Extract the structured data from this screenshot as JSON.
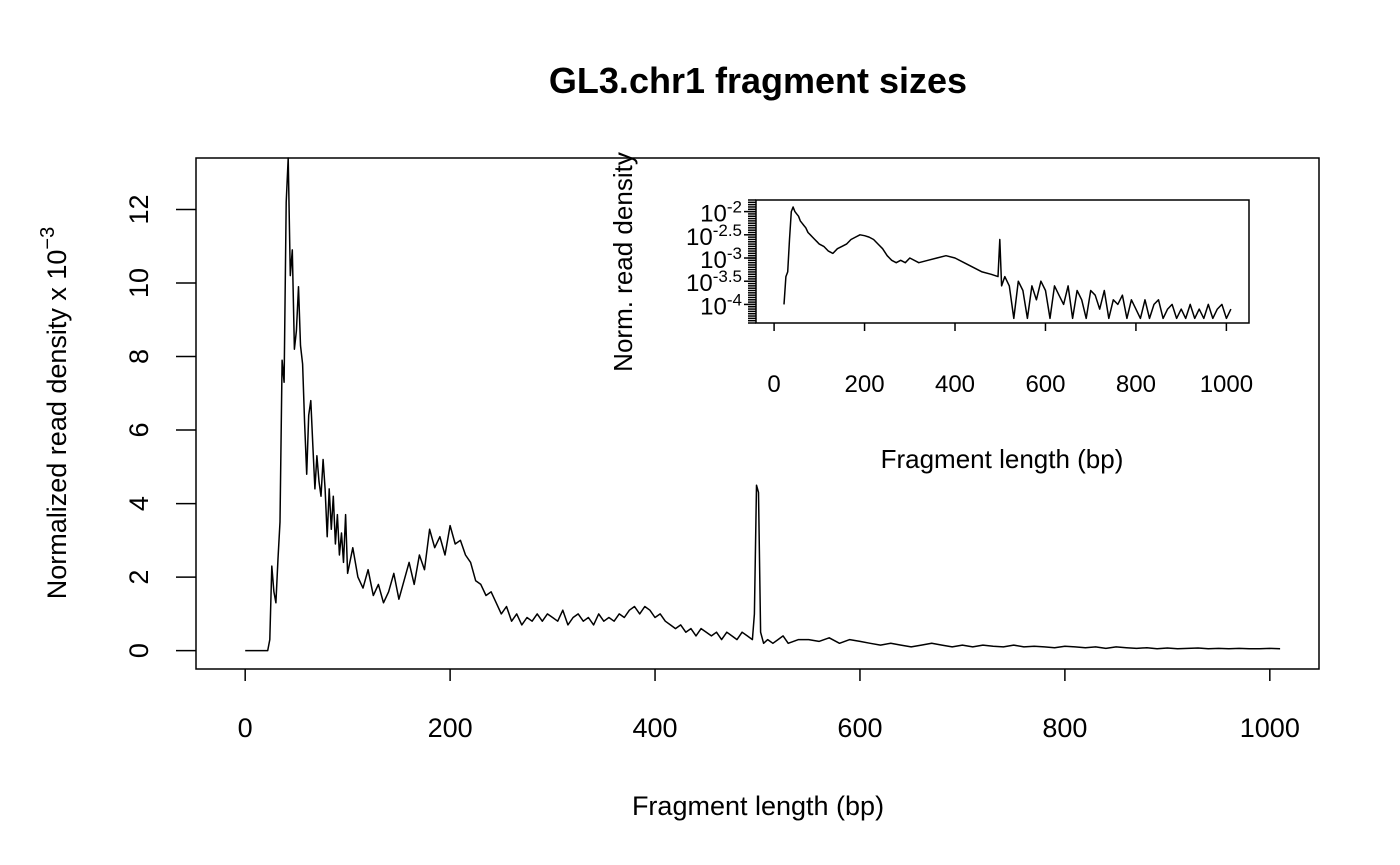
{
  "chart_data": [
    {
      "type": "line",
      "title": "GL3.chr1 fragment sizes",
      "xlabel": "Fragment length (bp)",
      "ylabel_main": "Normalized read density x 10",
      "ylabel_exp": "−3",
      "xlim": [
        -48,
        1048
      ],
      "ylim": [
        -0.5,
        13.4
      ],
      "xticks": [
        0,
        200,
        400,
        600,
        800,
        1000
      ],
      "yticks": [
        0,
        2,
        4,
        6,
        8,
        10,
        12
      ],
      "grid": false,
      "legend": "none",
      "series": [
        {
          "x": [
            0,
            22,
            24,
            26,
            28,
            30,
            32,
            34,
            36,
            38,
            40,
            42,
            44,
            46,
            48,
            50,
            52,
            54,
            56,
            58,
            60,
            62,
            64,
            66,
            68,
            70,
            72,
            74,
            76,
            78,
            80,
            82,
            84,
            86,
            88,
            90,
            92,
            94,
            96,
            98,
            100,
            105,
            110,
            115,
            120,
            125,
            130,
            135,
            140,
            145,
            150,
            155,
            160,
            165,
            170,
            175,
            180,
            185,
            190,
            195,
            200,
            205,
            210,
            215,
            220,
            225,
            230,
            235,
            240,
            245,
            250,
            255,
            260,
            265,
            270,
            275,
            280,
            285,
            290,
            295,
            300,
            305,
            310,
            315,
            320,
            325,
            330,
            335,
            340,
            345,
            350,
            355,
            360,
            365,
            370,
            375,
            380,
            385,
            390,
            395,
            400,
            405,
            410,
            415,
            420,
            425,
            430,
            435,
            440,
            445,
            450,
            455,
            460,
            465,
            470,
            475,
            480,
            485,
            490,
            495,
            497,
            499,
            501,
            503,
            506,
            510,
            515,
            520,
            525,
            530,
            540,
            550,
            560,
            570,
            580,
            590,
            600,
            610,
            620,
            630,
            640,
            650,
            660,
            670,
            680,
            690,
            700,
            710,
            720,
            730,
            740,
            750,
            760,
            770,
            780,
            790,
            800,
            810,
            820,
            830,
            840,
            850,
            860,
            870,
            880,
            890,
            900,
            910,
            920,
            930,
            940,
            950,
            960,
            970,
            980,
            990,
            1000,
            1010
          ],
          "y": [
            0,
            0,
            0.3,
            2.3,
            1.6,
            1.3,
            2.5,
            3.5,
            7.9,
            7.3,
            12.2,
            13.4,
            10.2,
            10.9,
            8.2,
            8.7,
            9.9,
            8.3,
            7.8,
            6.2,
            4.8,
            6.4,
            6.8,
            5.6,
            4.4,
            5.3,
            4.6,
            4.2,
            5.2,
            4.4,
            3.1,
            4.4,
            3.3,
            4.2,
            2.9,
            3.7,
            2.6,
            3.2,
            2.4,
            3.7,
            2.1,
            2.8,
            2.0,
            1.7,
            2.2,
            1.5,
            1.8,
            1.3,
            1.6,
            2.1,
            1.4,
            1.9,
            2.4,
            1.8,
            2.6,
            2.2,
            3.3,
            2.8,
            3.1,
            2.6,
            3.4,
            2.9,
            3.0,
            2.6,
            2.4,
            1.9,
            1.8,
            1.5,
            1.6,
            1.3,
            1.0,
            1.2,
            0.8,
            1.0,
            0.7,
            0.9,
            0.8,
            1.0,
            0.8,
            1.0,
            0.9,
            0.8,
            1.1,
            0.7,
            0.9,
            1.0,
            0.8,
            0.9,
            0.7,
            1.0,
            0.8,
            0.9,
            0.8,
            1.0,
            0.9,
            1.1,
            1.2,
            1.0,
            1.2,
            1.1,
            0.9,
            1.0,
            0.8,
            0.7,
            0.6,
            0.7,
            0.5,
            0.6,
            0.4,
            0.6,
            0.5,
            0.4,
            0.5,
            0.3,
            0.5,
            0.4,
            0.3,
            0.5,
            0.4,
            0.3,
            1.0,
            4.5,
            4.3,
            0.5,
            0.2,
            0.3,
            0.2,
            0.3,
            0.4,
            0.2,
            0.3,
            0.3,
            0.25,
            0.35,
            0.2,
            0.3,
            0.25,
            0.2,
            0.15,
            0.2,
            0.15,
            0.1,
            0.15,
            0.2,
            0.15,
            0.1,
            0.15,
            0.1,
            0.15,
            0.12,
            0.1,
            0.15,
            0.1,
            0.12,
            0.1,
            0.08,
            0.12,
            0.1,
            0.08,
            0.1,
            0.06,
            0.1,
            0.08,
            0.06,
            0.08,
            0.05,
            0.07,
            0.05,
            0.06,
            0.07,
            0.05,
            0.06,
            0.05,
            0.06,
            0.05,
            0.05,
            0.06,
            0.05
          ]
        }
      ]
    },
    {
      "type": "line",
      "title": "",
      "xlabel": "Fragment length (bp)",
      "ylabel": "Norm. read density",
      "yscale": "log10",
      "xlim": [
        -40,
        1050
      ],
      "ylim_log10": [
        -4.4,
        -1.75
      ],
      "xticks": [
        0,
        200,
        400,
        600,
        800,
        1000
      ],
      "yticks": [
        {
          "exp": -2,
          "label_base": "10",
          "label_exp": "-2"
        },
        {
          "exp": -2.5,
          "label_base": "10",
          "label_exp": "-2.5"
        },
        {
          "exp": -3,
          "label_base": "10",
          "label_exp": "-3"
        },
        {
          "exp": -3.5,
          "label_base": "10",
          "label_exp": "-3.5"
        },
        {
          "exp": -4,
          "label_base": "10",
          "label_exp": "-4"
        }
      ],
      "grid": false,
      "legend": "none",
      "series": [
        {
          "x": [
            22,
            26,
            30,
            34,
            38,
            42,
            46,
            50,
            54,
            58,
            62,
            66,
            70,
            75,
            80,
            85,
            90,
            95,
            100,
            110,
            120,
            130,
            140,
            150,
            160,
            170,
            180,
            190,
            200,
            210,
            220,
            230,
            240,
            250,
            260,
            270,
            280,
            290,
            300,
            320,
            340,
            360,
            380,
            400,
            420,
            440,
            460,
            480,
            495,
            499,
            503,
            510,
            520,
            530,
            540,
            550,
            560,
            570,
            580,
            590,
            600,
            610,
            620,
            630,
            640,
            650,
            660,
            670,
            680,
            690,
            700,
            710,
            720,
            730,
            740,
            750,
            760,
            770,
            780,
            790,
            800,
            810,
            820,
            830,
            840,
            850,
            860,
            870,
            880,
            890,
            900,
            910,
            920,
            930,
            940,
            950,
            960,
            970,
            980,
            990,
            1000,
            1010
          ],
          "y_log10": [
            -4.0,
            -3.4,
            -3.3,
            -2.6,
            -2.0,
            -1.9,
            -2.0,
            -2.05,
            -2.1,
            -2.2,
            -2.25,
            -2.3,
            -2.35,
            -2.45,
            -2.5,
            -2.55,
            -2.6,
            -2.65,
            -2.7,
            -2.75,
            -2.85,
            -2.9,
            -2.8,
            -2.75,
            -2.7,
            -2.6,
            -2.55,
            -2.5,
            -2.52,
            -2.55,
            -2.6,
            -2.7,
            -2.8,
            -2.95,
            -3.05,
            -3.1,
            -3.05,
            -3.1,
            -3.0,
            -3.1,
            -3.05,
            -3.0,
            -2.95,
            -3.0,
            -3.1,
            -3.2,
            -3.3,
            -3.35,
            -3.4,
            -2.6,
            -3.6,
            -3.4,
            -3.6,
            -4.3,
            -3.5,
            -3.7,
            -4.3,
            -3.6,
            -3.9,
            -3.5,
            -3.7,
            -4.3,
            -3.6,
            -3.8,
            -4.0,
            -3.6,
            -4.3,
            -3.7,
            -3.9,
            -4.3,
            -3.7,
            -3.8,
            -4.1,
            -3.7,
            -4.3,
            -3.9,
            -4.0,
            -3.8,
            -4.3,
            -3.9,
            -4.1,
            -4.3,
            -3.9,
            -4.3,
            -4.0,
            -3.9,
            -4.3,
            -4.1,
            -4.0,
            -4.3,
            -4.1,
            -4.3,
            -4.0,
            -4.3,
            -4.1,
            -4.3,
            -4.0,
            -4.3,
            -4.1,
            -4.0,
            -4.3,
            -4.1
          ]
        }
      ]
    }
  ]
}
